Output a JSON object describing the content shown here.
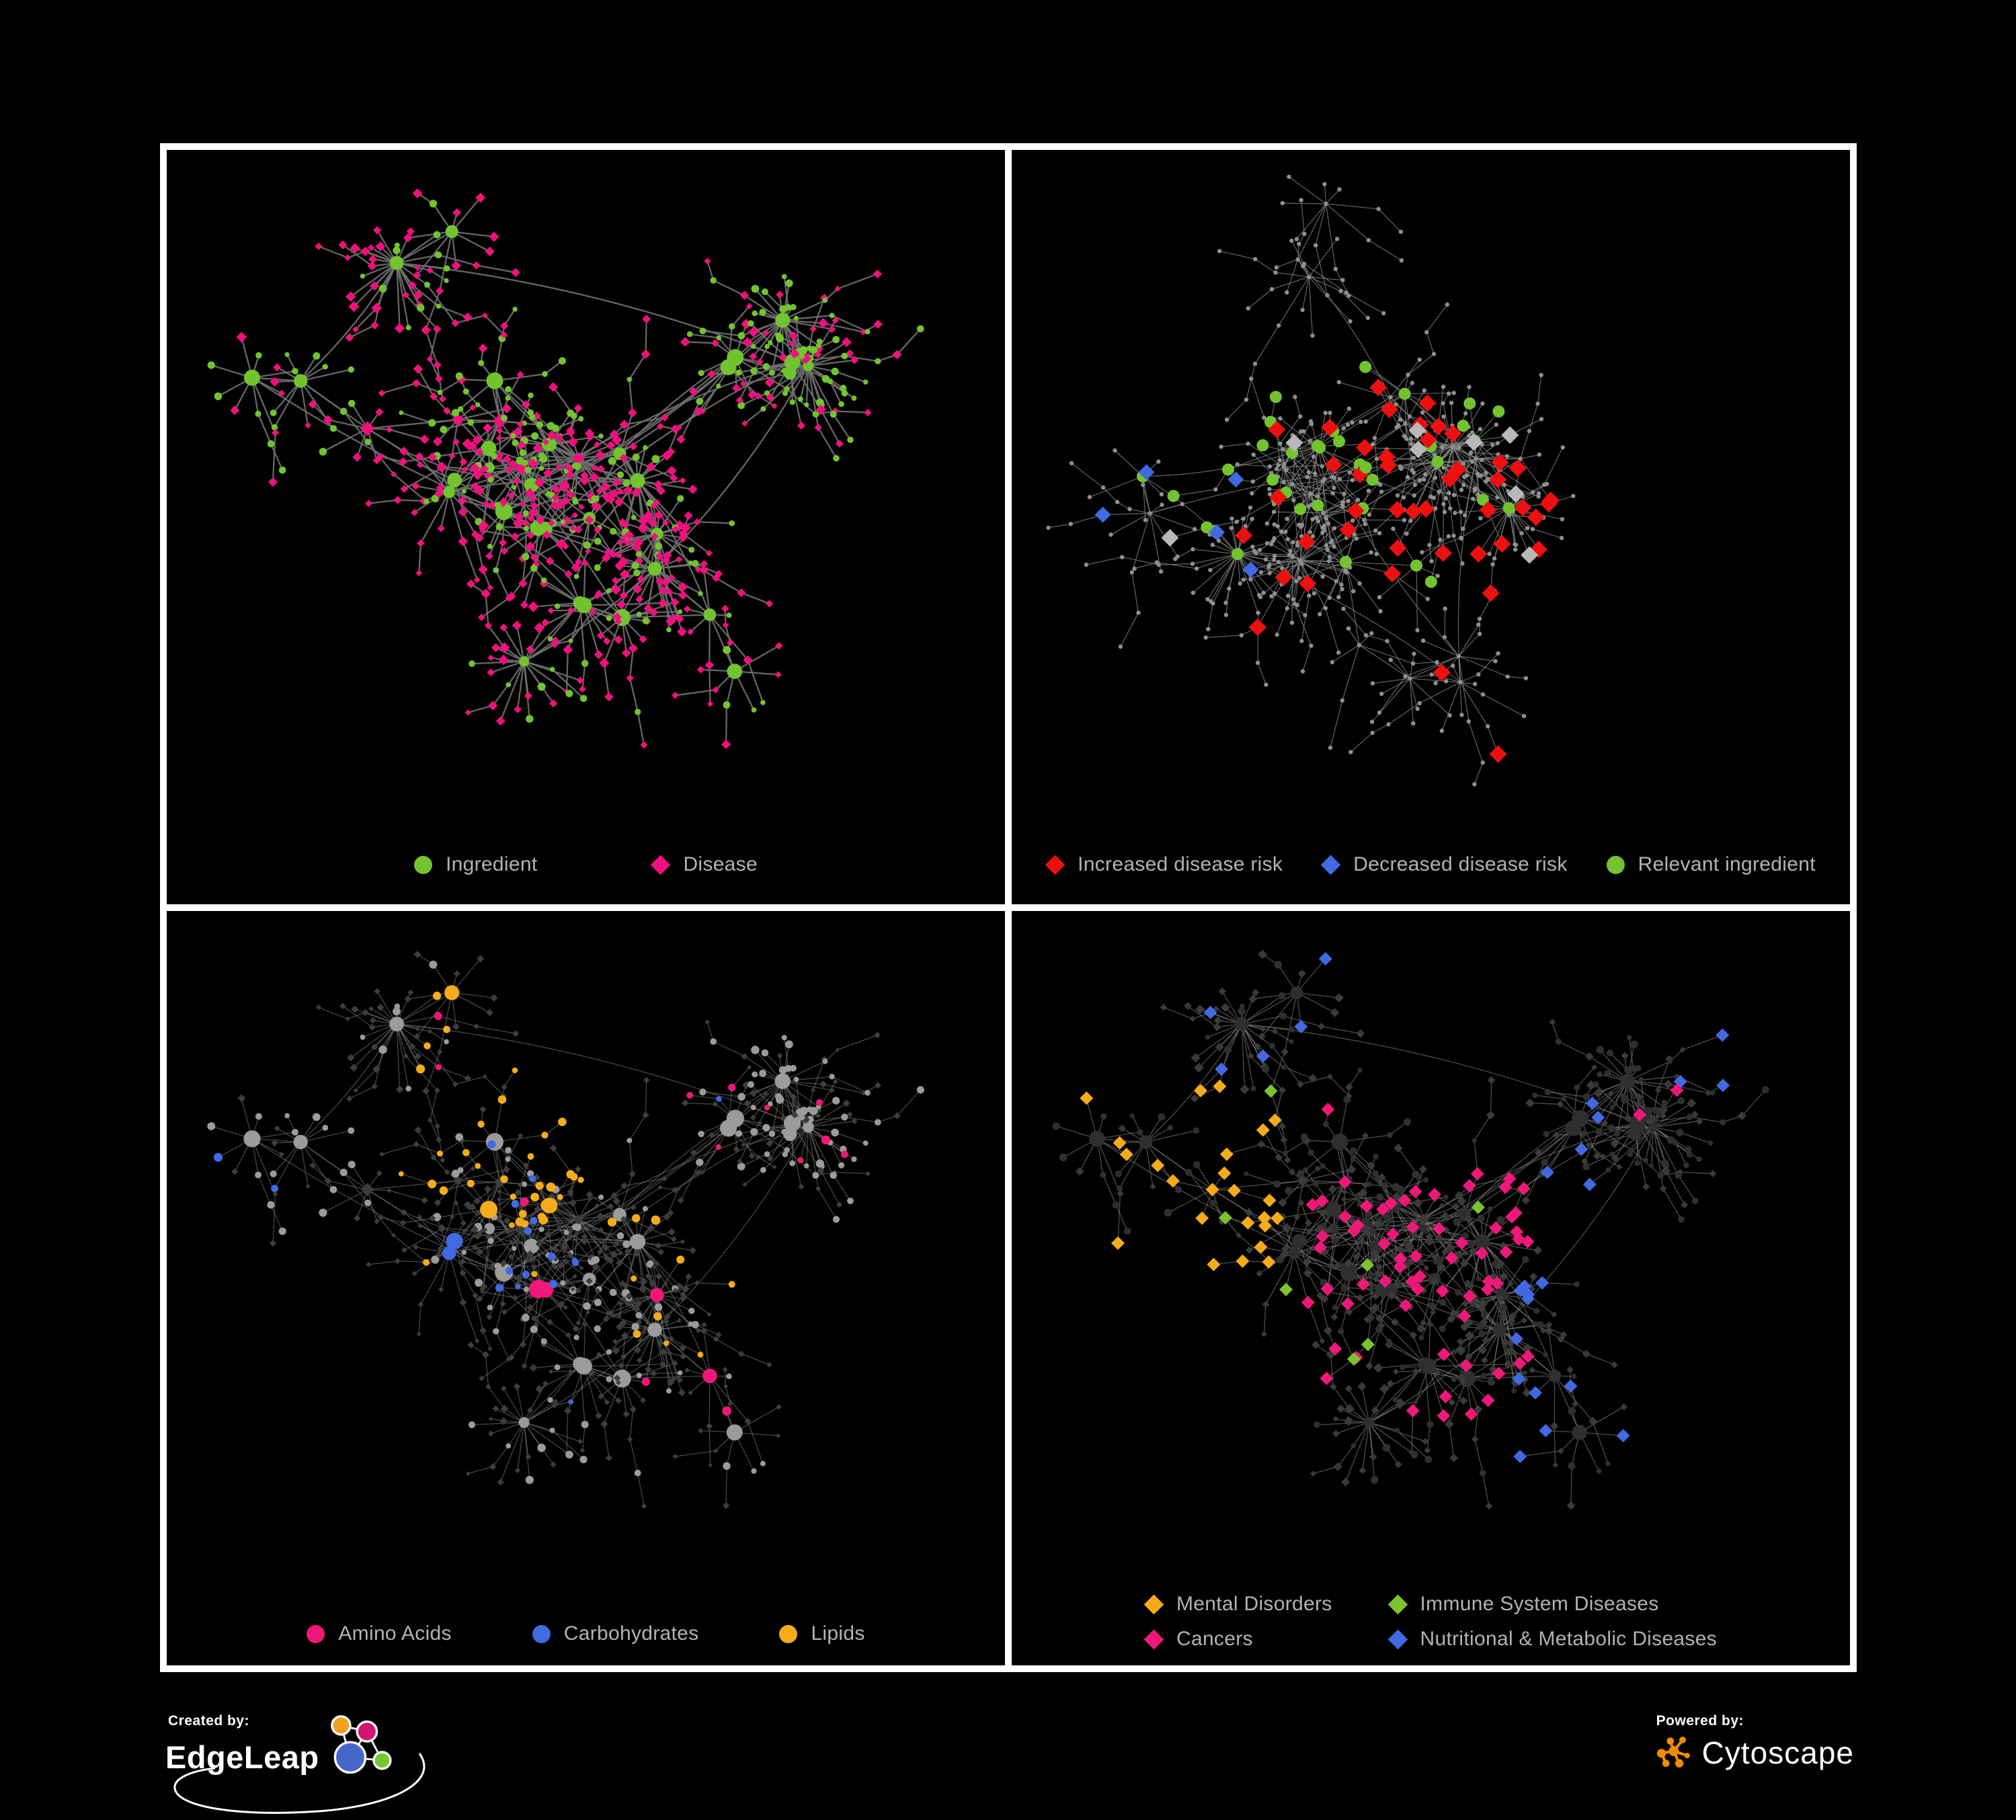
{
  "colors": {
    "background": "#000000",
    "frame": "#ffffff",
    "legend_text": "#b3b3b3",
    "footer_text": "#ffffff",
    "edgeleap_logo": [
      "#F2A21C",
      "#D31572",
      "#4468CA",
      "#76C82F"
    ],
    "cytoscape_logo": "#F08A00"
  },
  "panels": [
    {
      "name": "ingredient-disease",
      "legend": [
        {
          "label": "Ingredient",
          "shape": "circle",
          "color": "#72C42F"
        },
        {
          "label": "Disease",
          "shape": "diamond",
          "color": "#F0107E"
        }
      ],
      "network": {
        "layout_seed": 7,
        "highlight_seed": 101,
        "edge": {
          "color": "#6f6f6f",
          "width": 2.3,
          "opacity": 0.92
        },
        "base": {
          "ingredient": {
            "shape": "circle",
            "color": "#72C42F",
            "scale": 1.0
          },
          "disease": {
            "shape": "diamond",
            "color": "#F0107E",
            "scale": 1.35
          }
        },
        "highlights": []
      }
    },
    {
      "name": "disease-risk",
      "legend": [
        {
          "label": "Increased disease risk",
          "shape": "diamond",
          "color": "#EE1010"
        },
        {
          "label": "Decreased disease risk",
          "shape": "diamond",
          "color": "#4169E1"
        },
        {
          "label": "Relevant ingredient",
          "shape": "circle",
          "color": "#72C42F"
        }
      ],
      "network": {
        "layout_seed": 41,
        "highlight_seed": 202,
        "edge": {
          "color": "#8f8f8f",
          "width": 1.2,
          "opacity": 0.7
        },
        "base": {
          "ingredient": {
            "shape": "circle",
            "color": "#8f8f8f",
            "fixed": 3.2
          },
          "disease": {
            "shape": "circle",
            "color": "#8f8f8f",
            "fixed": 3.2
          }
        },
        "highlights": [
          {
            "target": "disease",
            "shape": "diamond",
            "color": "#b9b9b9",
            "region": [
              0.08,
              0.25,
              0.62,
              0.72
            ],
            "p": 0.05,
            "cap": 8,
            "size": 13
          },
          {
            "target": "disease",
            "shape": "diamond",
            "color": "#4169E1",
            "region": [
              0.06,
              0.3,
              0.3,
              0.62
            ],
            "p": 0.18,
            "cap": 6,
            "size": 12
          },
          {
            "target": "disease",
            "shape": "diamond",
            "color": "#4169E1",
            "region": [
              0.78,
              0.08,
              1.0,
              0.35
            ],
            "p": 0.3,
            "cap": 3,
            "size": 12
          },
          {
            "target": "disease",
            "shape": "diamond",
            "color": "#EE1010",
            "region": [
              0.16,
              0.18,
              0.78,
              0.75
            ],
            "p": 0.14,
            "cap": 42,
            "size": 13
          },
          {
            "target": "disease",
            "shape": "diamond",
            "color": "#EE1010",
            "region": [
              0.5,
              0.72,
              0.85,
              0.96
            ],
            "p": 0.12,
            "cap": 3,
            "size": 13
          },
          {
            "target": "ingredient",
            "shape": "circle",
            "color": "#72C42F",
            "region": [
              0.1,
              0.18,
              0.78,
              0.75
            ],
            "p": 0.38,
            "cap": 30,
            "size": 9
          },
          {
            "target": "ingredient",
            "shape": "circle",
            "color": "#72C42F",
            "region": [
              0.0,
              0.0,
              1.0,
              1.0
            ],
            "p": 0.05,
            "cap": 6,
            "size": 9
          }
        ]
      }
    },
    {
      "name": "nutrient-categories",
      "legend": [
        {
          "label": "Amino Acids",
          "shape": "circle",
          "color": "#EE1878"
        },
        {
          "label": "Carbohydrates",
          "shape": "circle",
          "color": "#4169E1"
        },
        {
          "label": "Lipids",
          "shape": "circle",
          "color": "#F6AC1A"
        }
      ],
      "network": {
        "layout_seed": 7,
        "highlight_seed": 303,
        "edge": {
          "color": "#8a8a8a",
          "width": 1.3,
          "opacity": 0.5
        },
        "base": {
          "ingredient": {
            "shape": "circle",
            "color": "#9b9b9b",
            "scale": 1.05
          },
          "disease": {
            "shape": "diamond",
            "color": "#3d3d3d",
            "scale": 1.0
          }
        },
        "highlights": [
          {
            "target": "ingredient",
            "shape": "circle",
            "color": "#F6AC1A",
            "region": [
              0.24,
              0.08,
              0.62,
              0.46
            ],
            "p": 0.62,
            "cap": 80,
            "size": 0
          },
          {
            "target": "ingredient",
            "shape": "circle",
            "color": "#4169E1",
            "region": [
              0.26,
              0.28,
              0.5,
              0.55
            ],
            "p": 0.3,
            "cap": 14,
            "size": 0
          },
          {
            "target": "ingredient",
            "shape": "circle",
            "color": "#4169E1",
            "region": [
              0.0,
              0.0,
              1.0,
              1.0
            ],
            "p": 0.02,
            "cap": 5,
            "size": 0
          },
          {
            "target": "ingredient",
            "shape": "circle",
            "color": "#F6AC1A",
            "region": [
              0.3,
              0.5,
              0.78,
              0.92
            ],
            "p": 0.12,
            "cap": 16,
            "size": 0
          },
          {
            "target": "ingredient",
            "shape": "circle",
            "color": "#EE1878",
            "region": [
              0.0,
              0.0,
              1.0,
              1.0
            ],
            "p": 0.09,
            "cap": 28,
            "size": 0
          }
        ]
      }
    },
    {
      "name": "disease-categories",
      "legend": [
        {
          "label": "Mental Disorders",
          "shape": "diamond",
          "color": "#F6AC1A"
        },
        {
          "label": "Immune System Diseases",
          "shape": "diamond",
          "color": "#7DC32F"
        },
        {
          "label": "Cancers",
          "shape": "diamond",
          "color": "#EE1878"
        },
        {
          "label": "Nutritional & Metabolic Diseases",
          "shape": "diamond",
          "color": "#4169E1"
        }
      ],
      "legend_columns": 2,
      "network": {
        "layout_seed": 7,
        "highlight_seed": 404,
        "edge": {
          "color": "#8c8c8c",
          "width": 1.3,
          "opacity": 0.55
        },
        "base": {
          "ingredient": {
            "shape": "circle",
            "color": "#2f2f2f",
            "scale": 1.0
          },
          "disease": {
            "shape": "diamond",
            "color": "#3a3a3a",
            "scale": 1.25
          }
        },
        "highlights": [
          {
            "target": "disease",
            "shape": "diamond",
            "color": "#F6AC1A",
            "region": [
              0.02,
              0.22,
              0.32,
              0.8
            ],
            "p": 0.62,
            "cap": 110,
            "size": 10
          },
          {
            "target": "disease",
            "shape": "diamond",
            "color": "#EE1878",
            "region": [
              0.34,
              0.28,
              0.62,
              0.75
            ],
            "p": 0.4,
            "cap": 65,
            "size": 10
          },
          {
            "target": "disease",
            "shape": "diamond",
            "color": "#EE1878",
            "region": [
              0.7,
              0.1,
              1.0,
              0.4
            ],
            "p": 0.08,
            "cap": 8,
            "size": 10
          },
          {
            "target": "disease",
            "shape": "diamond",
            "color": "#4169E1",
            "region": [
              0.6,
              0.05,
              1.0,
              0.97
            ],
            "p": 0.3,
            "cap": 78,
            "size": 10
          },
          {
            "target": "disease",
            "shape": "diamond",
            "color": "#4169E1",
            "region": [
              0.02,
              0.02,
              0.45,
              0.24
            ],
            "p": 0.14,
            "cap": 14,
            "size": 10
          },
          {
            "target": "disease",
            "shape": "diamond",
            "color": "#7DC32F",
            "region": [
              0.25,
              0.2,
              0.8,
              0.8
            ],
            "p": 0.03,
            "cap": 10,
            "size": 10
          }
        ]
      }
    }
  ],
  "footer": {
    "created_by": {
      "label": "Created by:",
      "brand": "EdgeLeap"
    },
    "powered_by": {
      "label": "Powered by:",
      "brand": "Cytoscape"
    }
  }
}
